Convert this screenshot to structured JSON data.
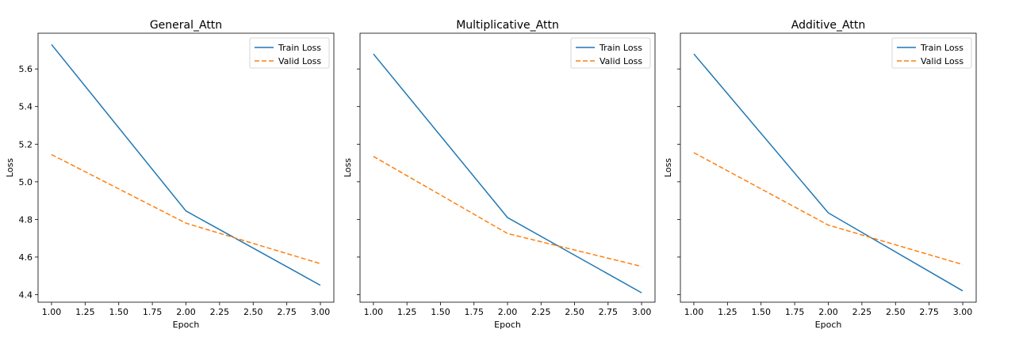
{
  "chart_data": [
    {
      "type": "line",
      "title": "General_Attn",
      "xlabel": "Epoch",
      "ylabel": "Loss",
      "xlim": [
        0.9,
        3.1
      ],
      "ylim": [
        4.36,
        5.79
      ],
      "x_ticks": [
        1.0,
        1.25,
        1.5,
        1.75,
        2.0,
        2.25,
        2.5,
        2.75,
        3.0
      ],
      "x_tick_labels": [
        "1.00",
        "1.25",
        "1.50",
        "1.75",
        "2.00",
        "2.25",
        "2.50",
        "2.75",
        "3.00"
      ],
      "y_ticks": [
        4.4,
        4.6,
        4.8,
        5.0,
        5.2,
        5.4,
        5.6
      ],
      "y_tick_labels": [
        "4.4",
        "4.6",
        "4.8",
        "5.0",
        "5.2",
        "5.4",
        "5.6"
      ],
      "show_y_tick_labels": true,
      "legend_position": "top-right",
      "grid": false,
      "x": [
        1,
        2,
        3
      ],
      "series": [
        {
          "name": "Train Loss",
          "values": [
            5.73,
            4.845,
            4.45
          ],
          "color": "#1f77b4",
          "style": "solid"
        },
        {
          "name": "Valid Loss",
          "values": [
            5.145,
            4.78,
            4.565
          ],
          "color": "#ff7f0e",
          "style": "dashed"
        }
      ]
    },
    {
      "type": "line",
      "title": "Multiplicative_Attn",
      "xlabel": "Epoch",
      "ylabel": "Loss",
      "xlim": [
        0.9,
        3.1
      ],
      "ylim": [
        4.36,
        5.79
      ],
      "x_ticks": [
        1.0,
        1.25,
        1.5,
        1.75,
        2.0,
        2.25,
        2.5,
        2.75,
        3.0
      ],
      "x_tick_labels": [
        "1.00",
        "1.25",
        "1.50",
        "1.75",
        "2.00",
        "2.25",
        "2.50",
        "2.75",
        "3.00"
      ],
      "y_ticks": [
        4.4,
        4.6,
        4.8,
        5.0,
        5.2,
        5.4,
        5.6
      ],
      "y_tick_labels": [
        "4.4",
        "4.6",
        "4.8",
        "5.0",
        "5.2",
        "5.4",
        "5.6"
      ],
      "show_y_tick_labels": false,
      "legend_position": "top-right",
      "grid": false,
      "x": [
        1,
        2,
        3
      ],
      "series": [
        {
          "name": "Train Loss",
          "values": [
            5.68,
            4.81,
            4.41
          ],
          "color": "#1f77b4",
          "style": "solid"
        },
        {
          "name": "Valid Loss",
          "values": [
            5.135,
            4.725,
            4.55
          ],
          "color": "#ff7f0e",
          "style": "dashed"
        }
      ]
    },
    {
      "type": "line",
      "title": "Additive_Attn",
      "xlabel": "Epoch",
      "ylabel": "Loss",
      "xlim": [
        0.9,
        3.1
      ],
      "ylim": [
        4.36,
        5.79
      ],
      "x_ticks": [
        1.0,
        1.25,
        1.5,
        1.75,
        2.0,
        2.25,
        2.5,
        2.75,
        3.0
      ],
      "x_tick_labels": [
        "1.00",
        "1.25",
        "1.50",
        "1.75",
        "2.00",
        "2.25",
        "2.50",
        "2.75",
        "3.00"
      ],
      "y_ticks": [
        4.4,
        4.6,
        4.8,
        5.0,
        5.2,
        5.4,
        5.6
      ],
      "y_tick_labels": [
        "4.4",
        "4.6",
        "4.8",
        "5.0",
        "5.2",
        "5.4",
        "5.6"
      ],
      "show_y_tick_labels": false,
      "legend_position": "top-right",
      "grid": false,
      "x": [
        1,
        2,
        3
      ],
      "series": [
        {
          "name": "Train Loss",
          "values": [
            5.68,
            4.835,
            4.42
          ],
          "color": "#1f77b4",
          "style": "solid"
        },
        {
          "name": "Valid Loss",
          "values": [
            5.155,
            4.77,
            4.56
          ],
          "color": "#ff7f0e",
          "style": "dashed"
        }
      ]
    }
  ]
}
